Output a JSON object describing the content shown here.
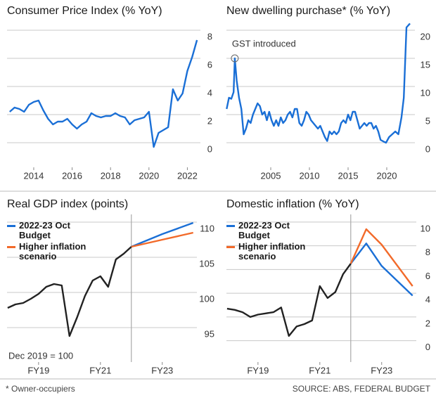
{
  "chart_data": [
    {
      "type": "line",
      "title": "Consumer Price Index (% YoY)",
      "x": [
        2012.75,
        2013,
        2013.25,
        2013.5,
        2013.75,
        2014,
        2014.25,
        2014.5,
        2014.75,
        2015,
        2015.25,
        2015.5,
        2015.75,
        2016,
        2016.25,
        2016.5,
        2016.75,
        2017,
        2017.25,
        2017.5,
        2017.75,
        2018,
        2018.25,
        2018.5,
        2018.75,
        2019,
        2019.25,
        2019.5,
        2019.75,
        2020,
        2020.25,
        2020.5,
        2020.75,
        2021,
        2021.25,
        2021.5,
        2021.75,
        2022,
        2022.25,
        2022.5
      ],
      "values": [
        2.2,
        2.5,
        2.4,
        2.2,
        2.7,
        2.9,
        3.0,
        2.3,
        1.7,
        1.3,
        1.5,
        1.5,
        1.7,
        1.3,
        1.0,
        1.3,
        1.5,
        2.1,
        1.9,
        1.8,
        1.9,
        1.9,
        2.1,
        1.9,
        1.8,
        1.3,
        1.6,
        1.7,
        1.8,
        2.2,
        -0.3,
        0.7,
        0.9,
        1.1,
        3.8,
        3.0,
        3.5,
        5.1,
        6.1,
        7.3
      ],
      "color": "#1a6fd6",
      "xlim": [
        2012.61,
        2022.68
      ],
      "xticks": [
        2014,
        2016,
        2018,
        2020,
        2022
      ],
      "ylim": [
        -1.75,
        8.4
      ],
      "yticks": [
        0,
        2,
        4,
        6,
        8
      ],
      "grid": true
    },
    {
      "type": "line",
      "title": "New dwelling purchase* (% YoY)",
      "x": [
        1999.3,
        1999.6,
        1999.9,
        2000.2,
        2000.35,
        2000.6,
        2000.9,
        2001.2,
        2001.5,
        2001.8,
        2002.1,
        2002.4,
        2002.7,
        2003.0,
        2003.3,
        2003.6,
        2003.9,
        2004.2,
        2004.5,
        2004.8,
        2005.1,
        2005.4,
        2005.7,
        2006.0,
        2006.3,
        2006.6,
        2006.9,
        2007.2,
        2007.5,
        2007.8,
        2008.1,
        2008.4,
        2008.7,
        2009.0,
        2009.3,
        2009.6,
        2009.9,
        2010.2,
        2010.5,
        2010.8,
        2011.1,
        2011.4,
        2011.7,
        2012.0,
        2012.3,
        2012.6,
        2012.9,
        2013.2,
        2013.5,
        2013.8,
        2014.1,
        2014.4,
        2014.7,
        2015.0,
        2015.3,
        2015.6,
        2015.9,
        2016.2,
        2016.5,
        2016.8,
        2017.1,
        2017.4,
        2017.7,
        2018.0,
        2018.3,
        2018.6,
        2018.9,
        2019.2,
        2019.6,
        2019.9,
        2020.3,
        2020.7,
        2021.1,
        2021.5,
        2021.9,
        2022.2,
        2022.55,
        2023.0
      ],
      "values": [
        6,
        8,
        7.8,
        9,
        15,
        11,
        8,
        6,
        1.5,
        2.5,
        4,
        3.5,
        5,
        6,
        7,
        6.5,
        5,
        5.5,
        4,
        5.5,
        4,
        3,
        4,
        3,
        4.5,
        3.5,
        4,
        5,
        5.5,
        4.5,
        6,
        6,
        3.5,
        3,
        4,
        5.5,
        5,
        4,
        3.5,
        3,
        2.5,
        3,
        2,
        1,
        0.3,
        2,
        1.5,
        2,
        1.5,
        2,
        3.5,
        4,
        3.5,
        5,
        4,
        5.5,
        5.5,
        4,
        2.5,
        3,
        3.5,
        3,
        3.5,
        3.5,
        2.5,
        3,
        2,
        0.5,
        0.2,
        0,
        1,
        1.5,
        2,
        1.5,
        4.5,
        8,
        20.5,
        21.2
      ],
      "color": "#1a6fd6",
      "annotation": {
        "text": "GST introduced",
        "x": 2000.35,
        "y": 15
      },
      "xlim": [
        1999.27,
        2023.64
      ],
      "xticks": [
        2005,
        2010,
        2015,
        2020
      ],
      "ylim": [
        -4.375,
        21
      ],
      "yticks": [
        0,
        5,
        10,
        15,
        20
      ],
      "grid": true
    },
    {
      "type": "line",
      "title": "Real GDP index (points)",
      "note": "Dec 2019 = 100",
      "series": [
        {
          "color": "#222222",
          "x": [
            2018,
            2018.25,
            2018.5,
            2018.75,
            2019,
            2019.25,
            2019.5,
            2019.75,
            2020,
            2020.25,
            2020.5,
            2020.75,
            2021,
            2021.25,
            2021.5,
            2021.75,
            2022
          ],
          "values": [
            97.8,
            98.3,
            98.5,
            99.1,
            99.8,
            100.8,
            101.2,
            101.0,
            93.8,
            96.5,
            99.5,
            101.7,
            102.3,
            100.8,
            104.7,
            105.5,
            106.5
          ]
        },
        {
          "name": "2022-23 Oct Budget",
          "color": "#1a6fd6",
          "x": [
            2022,
            2023,
            2024
          ],
          "values": [
            106.5,
            108.3,
            109.9
          ]
        },
        {
          "name": "Higher inflation scenario",
          "color": "#f26a2a",
          "x": [
            2022,
            2023,
            2024
          ],
          "values": [
            106.5,
            107.5,
            108.5
          ]
        }
      ],
      "vlines": [
        2022
      ],
      "legend": "upper left",
      "xlim": [
        2017.98,
        2024.12
      ],
      "xticks": [
        {
          "value": 2019,
          "label": "FY19"
        },
        {
          "value": 2021,
          "label": "FY21"
        },
        {
          "value": 2023,
          "label": "FY23"
        }
      ],
      "ylim": [
        90.1,
        110.6
      ],
      "yticks": [
        95,
        100,
        105,
        110
      ],
      "grid": true
    },
    {
      "type": "line",
      "title": "Domestic inflation (% YoY)",
      "series": [
        {
          "color": "#222222",
          "x": [
            2018,
            2018.25,
            2018.5,
            2018.75,
            2019,
            2019.25,
            2019.5,
            2019.75,
            2020,
            2020.25,
            2020.5,
            2020.75,
            2021,
            2021.25,
            2021.5,
            2021.75,
            2022
          ],
          "values": [
            2.7,
            2.6,
            2.4,
            2.0,
            2.2,
            2.3,
            2.4,
            2.8,
            0.4,
            1.2,
            1.4,
            1.7,
            4.6,
            3.6,
            4.1,
            5.6,
            6.5
          ]
        },
        {
          "name": "2022-23 Oct Budget",
          "color": "#1a6fd6",
          "x": [
            2022,
            2022.5,
            2023,
            2024
          ],
          "values": [
            6.5,
            8.2,
            6.3,
            3.8
          ]
        },
        {
          "name": "Higher inflation scenario",
          "color": "#f26a2a",
          "x": [
            2022,
            2022.5,
            2023,
            2024
          ],
          "values": [
            6.5,
            9.4,
            8.1,
            4.6
          ]
        }
      ],
      "vlines": [
        2022
      ],
      "legend": "upper left",
      "xlim": [
        2017.98,
        2024.12
      ],
      "xticks": [
        {
          "value": 2019,
          "label": "FY19"
        },
        {
          "value": 2021,
          "label": "FY21"
        },
        {
          "value": 2023,
          "label": "FY23"
        }
      ],
      "ylim": [
        -1.8,
        10.35
      ],
      "yticks": [
        0,
        2,
        4,
        6,
        8,
        10
      ],
      "grid": true
    }
  ],
  "footnote": "* Owner-occupiers",
  "source": "SOURCE: ABS, FEDERAL BUDGET"
}
